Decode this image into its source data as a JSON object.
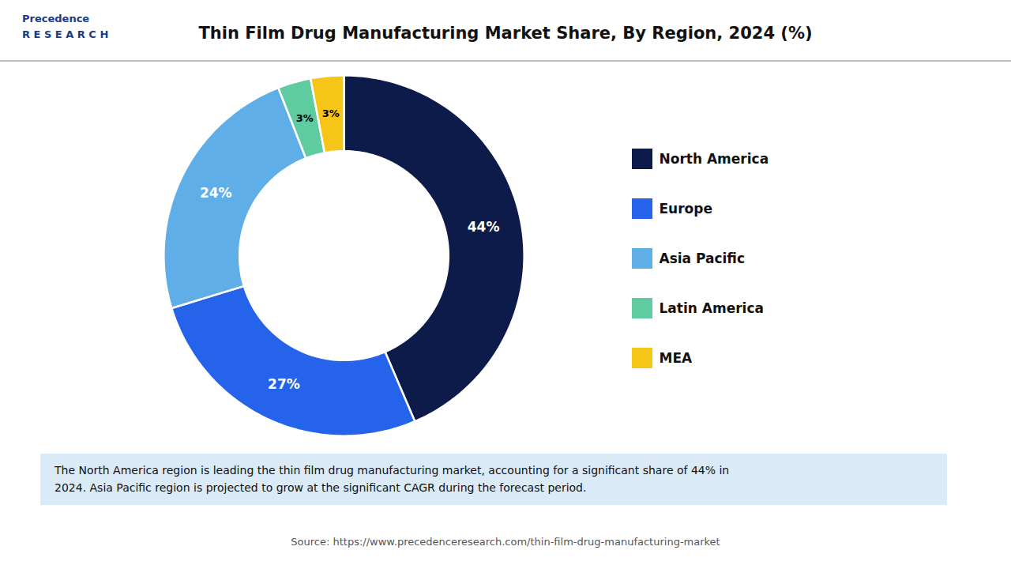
{
  "chart_data": {
    "type": "donut",
    "title": "Thin Film Drug Manufacturing Market Share, By Region, 2024 (%)",
    "categories": [
      "North America",
      "Europe",
      "Asia Pacific",
      "Latin America",
      "MEA"
    ],
    "values": [
      44,
      27,
      24,
      3,
      3
    ],
    "value_labels": [
      "44%",
      "27%",
      "24%",
      "3%",
      "3%"
    ],
    "colors": [
      "#0d1b4b",
      "#2563eb",
      "#60aee8",
      "#5ecba1",
      "#f5c518"
    ],
    "data_labels": true,
    "legend": "right",
    "annotations": [
      "Precedence\nR E S E A R C H",
      "The North America region is leading the thin film drug manufacturing market, accounting for a significant share of 44% in",
      "2024. Asia Pacific region is projected to grow at the significant CAGR during the forecast period.",
      "Source: https://www.precedenceresearch.com/thin-film-drug-manufacturing-market"
    ],
    "footnote_color": "#daeaf7"
  }
}
